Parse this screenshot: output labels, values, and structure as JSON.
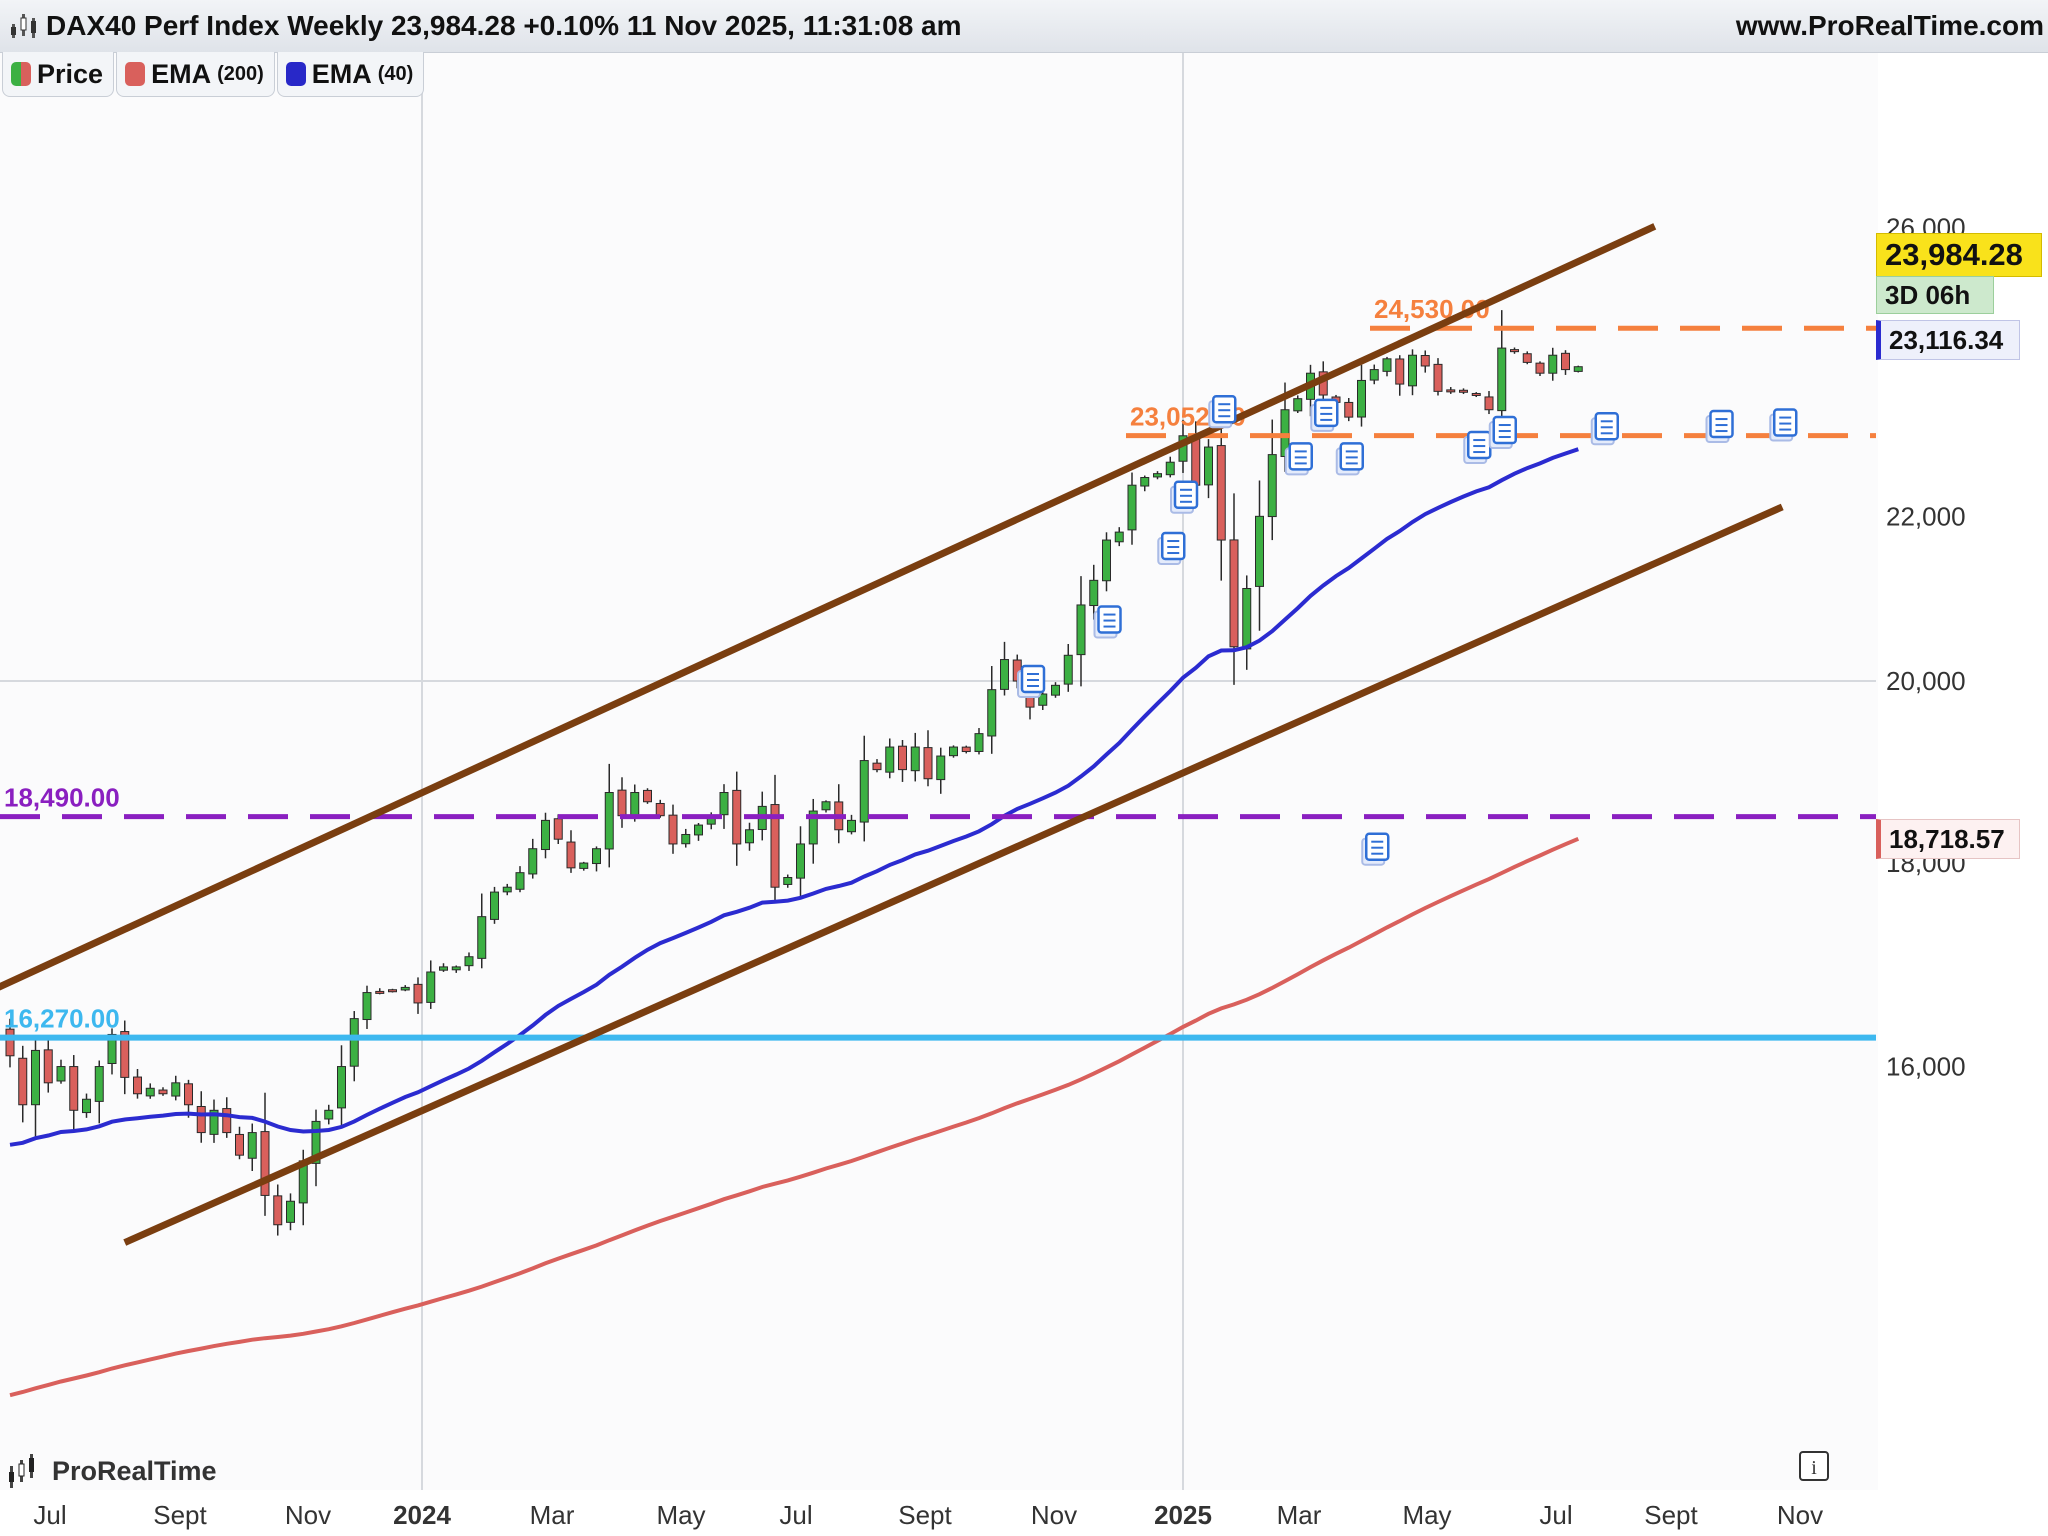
{
  "header": {
    "title": "DAX40 Perf Index Weekly 23,984.28 +0.10% 11 Nov 2025, 11:31:08 am",
    "site": "www.ProRealTime.com"
  },
  "legend": [
    {
      "label": "Price",
      "param": "",
      "color": "#3cb043"
    },
    {
      "label": "EMA",
      "param": "(200)",
      "color": "#d9605c"
    },
    {
      "label": "EMA",
      "param": "(40)",
      "color": "#2828c8"
    }
  ],
  "price_boxes": {
    "last_price": "23,984.28",
    "countdown": "3D 06h",
    "ema40": "23,116.34",
    "ema200": "18,718.57"
  },
  "watermark": "ProRealTime",
  "info_icon": "info-icon",
  "chart_data": {
    "type": "candlestick",
    "title": "DAX40 Perf Index Weekly",
    "y_ticks": [
      "26,000",
      "22,000",
      "20,000",
      "18,000",
      "16,000"
    ],
    "y_tick_values": [
      26000,
      22000,
      20000,
      18000,
      16000
    ],
    "x_ticks": [
      {
        "label": "Jul",
        "bold": false
      },
      {
        "label": "Sept",
        "bold": false
      },
      {
        "label": "Nov",
        "bold": false
      },
      {
        "label": "2024",
        "bold": true
      },
      {
        "label": "Mar",
        "bold": false
      },
      {
        "label": "May",
        "bold": false
      },
      {
        "label": "Jul",
        "bold": false
      },
      {
        "label": "Sept",
        "bold": false
      },
      {
        "label": "Nov",
        "bold": false
      },
      {
        "label": "2025",
        "bold": true
      },
      {
        "label": "Mar",
        "bold": false
      },
      {
        "label": "May",
        "bold": false
      },
      {
        "label": "Jul",
        "bold": false
      },
      {
        "label": "Sept",
        "bold": false
      },
      {
        "label": "Nov",
        "bold": false
      }
    ],
    "horizontal_lines": [
      {
        "label": "24,530.00",
        "value": 24530,
        "color": "#f5803e",
        "style": "dashed"
      },
      {
        "label": "23,052.00",
        "value": 23052,
        "color": "#f5803e",
        "style": "dashed"
      },
      {
        "label": "18,490.00",
        "value": 18490,
        "color": "#8a1fc0",
        "style": "dashed"
      },
      {
        "label": "16,270.00",
        "value": 16270,
        "color": "#3db8ef",
        "style": "solid"
      }
    ],
    "trend_channel": {
      "color": "#7a3e10",
      "upper": {
        "from": {
          "week": -5,
          "price": 16520
        },
        "to": {
          "week": 129,
          "price": 26020
        }
      },
      "lower": {
        "from": {
          "week": 9,
          "price": 14450
        },
        "to": {
          "week": 139,
          "price": 22120
        }
      }
    },
    "ema40_color": "#2b2bd0",
    "ema200_color": "#d9605c",
    "bull_color": "#3cb043",
    "bear_color": "#d9605c",
    "first_week": "2023-06-30",
    "weeks": 124,
    "closes": [
      16100,
      15650,
      16150,
      15850,
      16000,
      15600,
      15700,
      16000,
      16300,
      15900,
      15750,
      15800,
      15750,
      15850,
      15650,
      15400,
      15600,
      15400,
      15200,
      15400,
      14850,
      14600,
      14800,
      15150,
      15500,
      15600,
      16000,
      16450,
      16700,
      16700,
      16720,
      16750,
      16600,
      16900,
      16950,
      16950,
      17050,
      17450,
      17700,
      17750,
      17900,
      18150,
      18450,
      18250,
      17950,
      18000,
      18150,
      18750,
      18500,
      18750,
      18650,
      18500,
      18200,
      18300,
      18400,
      18500,
      18750,
      18200,
      18350,
      18600,
      17750,
      17850,
      18200,
      18550,
      18650,
      18350,
      18450,
      19100,
      19000,
      19250,
      19000,
      19250,
      18900,
      19150,
      19250,
      19200,
      19400,
      19900,
      20250,
      20000,
      19700,
      19850,
      19950,
      20300,
      20900,
      21200,
      21700,
      21800,
      22400,
      22500,
      22550,
      22700,
      23050,
      22400,
      22900,
      21700,
      20400,
      21100,
      22000,
      22800,
      23400,
      23550,
      23900,
      23600,
      23500,
      23300,
      23800,
      23950,
      24100,
      23750,
      24150,
      24000,
      23650,
      23650,
      23650,
      23600,
      23400,
      24250,
      24200,
      24050,
      23900,
      24150,
      23950,
      23990
    ]
  }
}
